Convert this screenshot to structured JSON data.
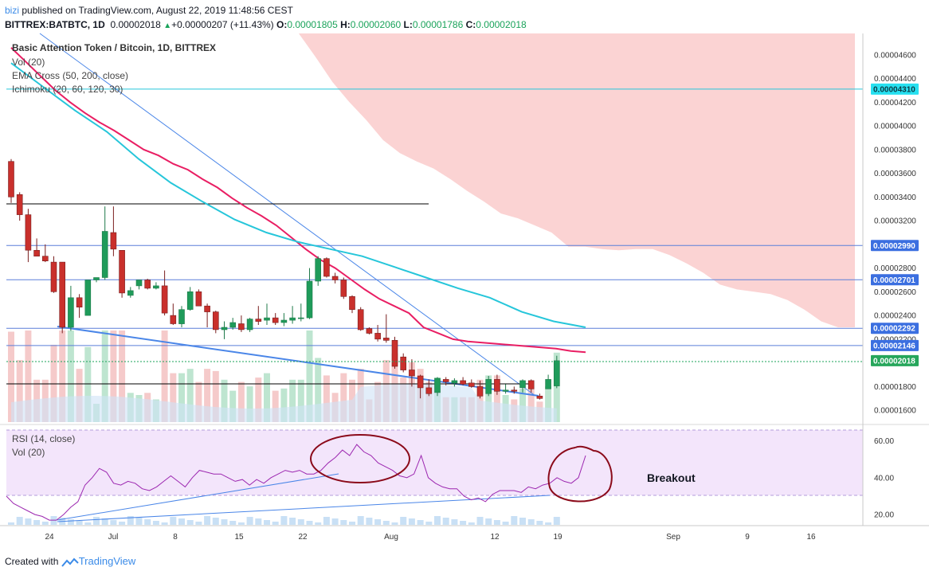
{
  "header": {
    "author": "bizi",
    "published": "published on TradingView.com, August 22, 2019 11:48:56 CEST",
    "symbol_line": "BITTREX:BATBTC, 1D",
    "last": "0.00002018",
    "arrow": "▲",
    "change": "+0.00000207 (+11.43%)",
    "o_label": "O:",
    "o": "0.00001805",
    "h_label": "H:",
    "h": "0.00002060",
    "l_label": "L:",
    "l": "0.00001786",
    "c_label": "C:",
    "c": "0.00002018"
  },
  "legend": {
    "title": "Basic Attention Token / Bitcoin, 1D, BITTREX",
    "vol": "Vol (20)",
    "ema": "EMA Cross (50, 200, close)",
    "ichimoku": "Ichimoku (20, 60, 120, 30)",
    "rsi": "RSI (14, close)",
    "rsi_vol": "Vol (20)"
  },
  "annotation": "Breakout",
  "footer": {
    "created_with": "Created with",
    "brand": "TradingView"
  },
  "colors": {
    "up": "#1f9b5a",
    "down": "#c9302c",
    "ema_fast": "#26c6da",
    "ema_slow": "#e91e63",
    "cloud": "#f8c8c8",
    "rsi": "#9c27b0",
    "rsi_bg": "#f3e5fb",
    "accent": "#2962ff",
    "circle": "#8b0a1a"
  },
  "chart_data": [
    {
      "type": "candlestick",
      "title": "Basic Attention Token / Bitcoin, 1D, BITTREX",
      "y_ticks": [
        "0.00001600",
        "0.00001800",
        "0.00002000",
        "0.00002200",
        "0.00002400",
        "0.00002600",
        "0.00002800",
        "0.00003000",
        "0.00003200",
        "0.00003400",
        "0.00003600",
        "0.00003800",
        "0.00004000",
        "0.00004200",
        "0.00004400",
        "0.00004600"
      ],
      "y_range": [
        1.5e-05,
        4.78e-05
      ],
      "x_ticks": [
        "24",
        "Jul",
        "8",
        "15",
        "22",
        "Aug",
        "12",
        "19",
        "Sep",
        "9",
        "16"
      ],
      "price_tags": [
        {
          "label": "0.00004310",
          "value": 4.31e-05,
          "style": "cyan"
        },
        {
          "label": "0.00002990",
          "value": 2.99e-05,
          "style": "blue"
        },
        {
          "label": "0.00002701",
          "value": 2.701e-05,
          "style": "blue"
        },
        {
          "label": "0.00002292",
          "value": 2.292e-05,
          "style": "blue"
        },
        {
          "label": "0.00002146",
          "value": 2.146e-05,
          "style": "blue"
        },
        {
          "label": "0.00002018",
          "value": 2.018e-05,
          "style": "green"
        }
      ],
      "candles": [
        [
          3.7e-05,
          3.72e-05,
          3.35e-05,
          3.4e-05
        ],
        [
          3.42e-05,
          3.44e-05,
          3.2e-05,
          3.25e-05
        ],
        [
          3.25e-05,
          3.3e-05,
          2.85e-05,
          2.95e-05
        ],
        [
          2.95e-05,
          3.05e-05,
          2.9e-05,
          2.9e-05
        ],
        [
          2.9e-05,
          3e-05,
          2.85e-05,
          2.86e-05
        ],
        [
          2.85e-05,
          2.9e-05,
          2.59e-05,
          2.6e-05
        ],
        [
          2.85e-05,
          2.85e-05,
          2.25e-05,
          2.3e-05
        ],
        [
          2.3e-05,
          2.65e-05,
          2.27e-05,
          2.55e-05
        ],
        [
          2.55e-05,
          2.58e-05,
          2.38e-05,
          2.47e-05
        ],
        [
          2.4e-05,
          2.7e-05,
          2.4e-05,
          2.7e-05
        ],
        [
          2.7e-05,
          2.72e-05,
          2.68e-05,
          2.72e-05
        ],
        [
          2.72e-05,
          3.32e-05,
          2.7e-05,
          3.11e-05
        ],
        [
          3.1e-05,
          3.32e-05,
          2.9e-05,
          2.96e-05
        ],
        [
          2.95e-05,
          2.95e-05,
          2.55e-05,
          2.59e-05
        ],
        [
          2.57e-05,
          2.64e-05,
          2.55e-05,
          2.61e-05
        ],
        [
          2.65e-05,
          2.7e-05,
          2.62e-05,
          2.7e-05
        ],
        [
          2.7e-05,
          2.71e-05,
          2.62e-05,
          2.63e-05
        ],
        [
          2.63e-05,
          2.68e-05,
          2.62e-05,
          2.65e-05
        ],
        [
          2.65e-05,
          2.78e-05,
          2.4e-05,
          2.42e-05
        ],
        [
          2.4e-05,
          2.5e-05,
          2.32e-05,
          2.33e-05
        ],
        [
          2.33e-05,
          2.48e-05,
          2.3e-05,
          2.45e-05
        ],
        [
          2.45e-05,
          2.64e-05,
          2.44e-05,
          2.6e-05
        ],
        [
          2.6e-05,
          2.62e-05,
          2.48e-05,
          2.48e-05
        ],
        [
          2.48e-05,
          2.5e-05,
          2.3e-05,
          2.43e-05
        ],
        [
          2.43e-05,
          2.44e-05,
          2.25e-05,
          2.28e-05
        ],
        [
          2.28e-05,
          2.35e-05,
          2.2e-05,
          2.3e-05
        ],
        [
          2.3e-05,
          2.38e-05,
          2.28e-05,
          2.34e-05
        ],
        [
          2.33e-05,
          2.4e-05,
          2.26e-05,
          2.28e-05
        ],
        [
          2.28e-05,
          2.38e-05,
          2.26e-05,
          2.37e-05
        ],
        [
          2.37e-05,
          2.48e-05,
          2.32e-05,
          2.35e-05
        ],
        [
          2.36e-05,
          2.5e-05,
          2.32e-05,
          2.38e-05
        ],
        [
          2.38e-05,
          2.42e-05,
          2.32e-05,
          2.34e-05
        ],
        [
          2.34e-05,
          2.42e-05,
          2.31e-05,
          2.36e-05
        ],
        [
          2.36e-05,
          2.48e-05,
          2.33e-05,
          2.38e-05
        ],
        [
          2.38e-05,
          2.5e-05,
          2.35e-05,
          2.38e-05
        ],
        [
          2.38e-05,
          2.8e-05,
          2.37e-05,
          2.69e-05
        ],
        [
          2.69e-05,
          2.9e-05,
          2.65e-05,
          2.88e-05
        ],
        [
          2.88e-05,
          2.89e-05,
          2.72e-05,
          2.73e-05
        ],
        [
          2.73e-05,
          2.76e-05,
          2.67e-05,
          2.7e-05
        ],
        [
          2.7e-05,
          2.72e-05,
          2.54e-05,
          2.56e-05
        ],
        [
          2.56e-05,
          2.57e-05,
          2.42e-05,
          2.45e-05
        ],
        [
          2.45e-05,
          2.47e-05,
          2.27e-05,
          2.28e-05
        ],
        [
          2.29e-05,
          2.3e-05,
          2.24e-05,
          2.25e-05
        ],
        [
          2.25e-05,
          2.32e-05,
          2.18e-05,
          2.2e-05
        ],
        [
          2.21e-05,
          2.41e-05,
          2.17e-05,
          2.19e-05
        ],
        [
          2.19e-05,
          2.22e-05,
          1.95e-05,
          1.97e-05
        ],
        [
          2.05e-05,
          2.08e-05,
          1.92e-05,
          1.94e-05
        ],
        [
          1.94e-05,
          2.03e-05,
          1.8e-05,
          1.89e-05
        ],
        [
          1.89e-05,
          1.9e-05,
          1.7e-05,
          1.79e-05
        ],
        [
          1.79e-05,
          1.86e-05,
          1.72e-05,
          1.74e-05
        ],
        [
          1.75e-05,
          1.88e-05,
          1.72e-05,
          1.87e-05
        ],
        [
          1.86e-05,
          1.88e-05,
          1.81e-05,
          1.84e-05
        ],
        [
          1.83e-05,
          1.87e-05,
          1.8e-05,
          1.85e-05
        ],
        [
          1.85e-05,
          1.88e-05,
          1.81e-05,
          1.82e-05
        ],
        [
          1.83e-05,
          1.86e-05,
          1.79e-05,
          1.8e-05
        ],
        [
          1.8e-05,
          1.85e-05,
          1.7e-05,
          1.72e-05
        ],
        [
          1.74e-05,
          1.89e-05,
          1.72e-05,
          1.86e-05
        ],
        [
          1.86e-05,
          1.9e-05,
          1.73e-05,
          1.76e-05
        ],
        [
          1.76e-05,
          1.82e-05,
          1.74e-05,
          1.77e-05
        ],
        [
          1.77e-05,
          1.8e-05,
          1.74e-05,
          1.76e-05
        ],
        [
          1.79e-05,
          1.86e-05,
          1.75e-05,
          1.85e-05
        ],
        [
          1.85e-05,
          1.86e-05,
          1.75e-05,
          1.78e-05
        ],
        [
          1.72e-05,
          1.74e-05,
          1.69e-05,
          1.7e-05
        ],
        [
          1.78e-05,
          1.9e-05,
          1.78e-05,
          1.86e-05
        ],
        [
          1.805e-05,
          2.06e-05,
          1.786e-05,
          2.018e-05
        ]
      ],
      "ema_fast": [
        4.53e-05,
        4.33e-05,
        4.13e-05,
        3.95e-05,
        3.72e-05,
        3.52e-05,
        3.36e-05,
        3.21e-05,
        3.1e-05,
        3.02e-05,
        2.96e-05,
        2.9e-05,
        2.81e-05,
        2.72e-05,
        2.63e-05,
        2.55e-05,
        2.43e-05,
        2.35e-05,
        2.3e-05
      ],
      "ema_slow": [
        4.66e-05,
        4.54e-05,
        4.42e-05,
        4.3e-05,
        4.2e-05,
        4.11e-05,
        4.03e-05,
        3.96e-05,
        3.88e-05,
        3.8e-05,
        3.75e-05,
        3.68e-05,
        3.63e-05,
        3.55e-05,
        3.48e-05,
        3.39e-05,
        3.31e-05,
        3.24e-05,
        3.16e-05,
        3.06e-05,
        2.96e-05,
        2.87e-05,
        2.8e-05,
        2.71e-05,
        2.62e-05,
        2.54e-05,
        2.48e-05,
        2.42e-05,
        2.3e-05,
        2.25e-05,
        2.2e-05,
        2.18e-05,
        2.17e-05,
        2.16e-05,
        2.15e-05,
        2.14e-05,
        2.13e-05,
        2.12e-05,
        2.1e-05,
        2.09e-05
      ],
      "cloud_upper_edge": [
        4.78e-05,
        4.58e-05,
        4.37e-05,
        4.2e-05,
        4.05e-05,
        3.88e-05,
        3.77e-05,
        3.7e-05,
        3.64e-05,
        3.55e-05,
        3.45e-05,
        3.36e-05,
        3.26e-05,
        3.22e-05,
        3.16e-05,
        3.1e-05,
        2.98e-05,
        2.98e-05,
        2.96e-05,
        2.95e-05,
        2.96e-05,
        2.96e-05,
        2.91e-05,
        2.84e-05,
        2.76e-05,
        2.66e-05,
        2.62e-05,
        2.6e-05,
        2.58e-05,
        2.53e-05,
        2.45e-05,
        2.35e-05,
        2.3e-05,
        2.3e-05
      ]
    },
    {
      "type": "line",
      "title": "RSI (14, close)",
      "y_ticks": [
        "20.00",
        "40.00",
        "60.00"
      ],
      "y_range": [
        14,
        68
      ],
      "bands": [
        30,
        70
      ],
      "series": [
        {
          "values": [
            30,
            26,
            24,
            22,
            20,
            19,
            17,
            17,
            20,
            24,
            27,
            36,
            40,
            45,
            43,
            37,
            36,
            38,
            37,
            34,
            33,
            35,
            38,
            41,
            38,
            35,
            40,
            44,
            43,
            42,
            42,
            40,
            38,
            39,
            36,
            39,
            37,
            40,
            42,
            44,
            43,
            44,
            42,
            42,
            44,
            48,
            51,
            55,
            52,
            58,
            54,
            52,
            48,
            46,
            44,
            41,
            40,
            42,
            52,
            40,
            37,
            35,
            34,
            34,
            30,
            28,
            29,
            27,
            31,
            33,
            33,
            33,
            32,
            35,
            34,
            36,
            37,
            40,
            38,
            37,
            40,
            52
          ]
        }
      ]
    }
  ]
}
